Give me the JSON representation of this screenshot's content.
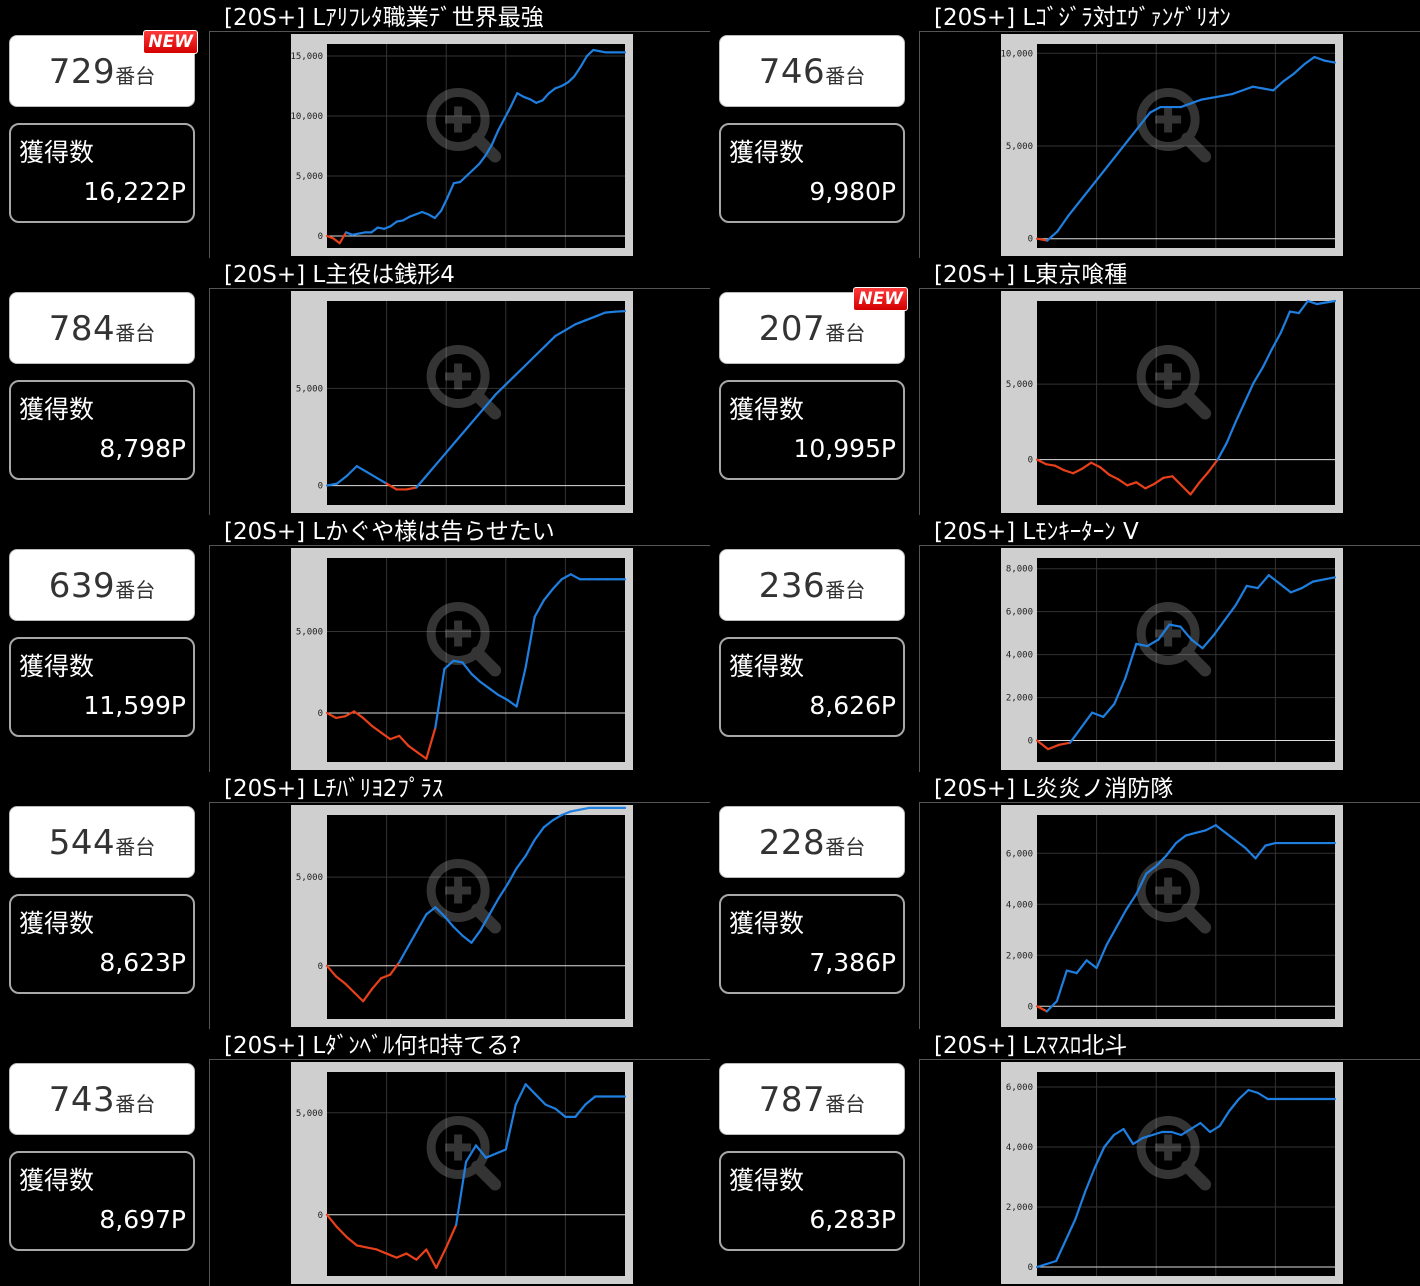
{
  "units": [
    {
      "slot_number": "729",
      "slot_suffix": "番台",
      "is_new": true,
      "new_label": "NEW",
      "gain_label": "獲得数",
      "gain_value": "16,222P",
      "machine_title": "[20S+] Lｱﾘﾌﾚﾀ職業ﾃﾞ世界最強"
    },
    {
      "slot_number": "746",
      "slot_suffix": "番台",
      "is_new": false,
      "new_label": "",
      "gain_label": "獲得数",
      "gain_value": "9,980P",
      "machine_title": "[20S+] Lｺﾞｼﾞﾗ対ｴｳﾞｧﾝｹﾞﾘｵﾝ"
    },
    {
      "slot_number": "784",
      "slot_suffix": "番台",
      "is_new": false,
      "new_label": "",
      "gain_label": "獲得数",
      "gain_value": "8,798P",
      "machine_title": "[20S+] L主役は銭形4"
    },
    {
      "slot_number": "207",
      "slot_suffix": "番台",
      "is_new": true,
      "new_label": "NEW",
      "gain_label": "獲得数",
      "gain_value": "10,995P",
      "machine_title": "[20S+] L東京喰種"
    },
    {
      "slot_number": "639",
      "slot_suffix": "番台",
      "is_new": false,
      "new_label": "",
      "gain_label": "獲得数",
      "gain_value": "11,599P",
      "machine_title": "[20S+] Lかぐや様は告らせたい"
    },
    {
      "slot_number": "236",
      "slot_suffix": "番台",
      "is_new": false,
      "new_label": "",
      "gain_label": "獲得数",
      "gain_value": "8,626P",
      "machine_title": "[20S+] Lﾓﾝｷｰﾀｰﾝ V"
    },
    {
      "slot_number": "544",
      "slot_suffix": "番台",
      "is_new": false,
      "new_label": "",
      "gain_label": "獲得数",
      "gain_value": "8,623P",
      "machine_title": "[20S+] Lﾁﾊﾞﾘﾖ2ﾌﾟﾗｽ"
    },
    {
      "slot_number": "228",
      "slot_suffix": "番台",
      "is_new": false,
      "new_label": "",
      "gain_label": "獲得数",
      "gain_value": "7,386P",
      "machine_title": "[20S+] L炎炎ノ消防隊"
    },
    {
      "slot_number": "743",
      "slot_suffix": "番台",
      "is_new": false,
      "new_label": "",
      "gain_label": "獲得数",
      "gain_value": "8,697P",
      "machine_title": "[20S+] Lﾀﾞﾝﾍﾞﾙ何ｷﾛ持てる?"
    },
    {
      "slot_number": "787",
      "slot_suffix": "番台",
      "is_new": false,
      "new_label": "",
      "gain_label": "獲得数",
      "gain_value": "6,283P",
      "machine_title": "[20S+] Lｽﾏｽﾛ北斗"
    }
  ],
  "colors": {
    "positive_line": "#1e7fe0",
    "negative_line": "#e8401a",
    "background": "#000000",
    "frame": "#cfcfcf"
  },
  "icons": {
    "zoom_overlay": "zoom-in-icon"
  },
  "chart_data": [
    {
      "type": "line",
      "ylim": [
        -1000,
        16000
      ],
      "yticks": [
        0,
        5000,
        10000,
        15000
      ],
      "ytick_labels": [
        "0",
        "5,000",
        "10,000",
        "15,000"
      ],
      "grid": true,
      "x": [
        0,
        1,
        2,
        3,
        4,
        5,
        6,
        7,
        8,
        9,
        10,
        11,
        12,
        13,
        14,
        15,
        16,
        17,
        18,
        19,
        20,
        21,
        22,
        23,
        24,
        25,
        26,
        27,
        28,
        29,
        30,
        31,
        32,
        33,
        34,
        35,
        36,
        37,
        38,
        39,
        40,
        41,
        42,
        43,
        44,
        45,
        46,
        47
      ],
      "values": [
        0,
        -200,
        -600,
        300,
        100,
        200,
        300,
        300,
        700,
        600,
        800,
        1200,
        1300,
        1600,
        1800,
        2000,
        1800,
        1500,
        2100,
        3200,
        4400,
        4500,
        5000,
        5500,
        6000,
        6700,
        7600,
        8800,
        9800,
        10800,
        11900,
        11600,
        11400,
        11100,
        11300,
        11900,
        12300,
        12500,
        12800,
        13300,
        14100,
        15000,
        15500,
        15400,
        15300,
        15300,
        15300,
        15300
      ]
    },
    {
      "type": "line",
      "ylim": [
        -500,
        10500
      ],
      "yticks": [
        0,
        5000,
        10000
      ],
      "ytick_labels": [
        "0",
        "5,000",
        "10,000"
      ],
      "grid": true,
      "x": [
        0,
        1,
        2,
        3,
        4,
        5,
        6,
        7,
        8,
        9,
        10,
        11,
        12,
        13,
        14,
        15,
        16,
        17,
        18,
        19,
        20,
        21,
        22,
        23,
        24,
        25,
        26,
        27,
        28,
        29
      ],
      "values": [
        0,
        -100,
        400,
        1200,
        1900,
        2600,
        3300,
        4000,
        4700,
        5400,
        6100,
        6800,
        7100,
        7100,
        7100,
        7300,
        7500,
        7600,
        7700,
        7800,
        8000,
        8200,
        8100,
        8000,
        8500,
        8900,
        9400,
        9800,
        9600,
        9500
      ]
    },
    {
      "type": "line",
      "ylim": [
        -1000,
        9500
      ],
      "yticks": [
        0,
        5000
      ],
      "ytick_labels": [
        "0",
        "5,000"
      ],
      "grid": true,
      "x": [
        0,
        1,
        2,
        3,
        4,
        5,
        6,
        7,
        8,
        9,
        10,
        11,
        12,
        13,
        14,
        15,
        16,
        17,
        18,
        19,
        20,
        21,
        22,
        23,
        24,
        25,
        26,
        27,
        28,
        29,
        30
      ],
      "values": [
        0,
        100,
        500,
        1000,
        700,
        400,
        100,
        -200,
        -200,
        -100,
        500,
        1100,
        1700,
        2300,
        2900,
        3500,
        4100,
        4700,
        5200,
        5700,
        6200,
        6700,
        7200,
        7700,
        8000,
        8300,
        8500,
        8700,
        8900,
        8950,
        8980
      ]
    },
    {
      "type": "line",
      "ylim": [
        -3000,
        10500
      ],
      "yticks": [
        0,
        5000
      ],
      "ytick_labels": [
        "0",
        "5,000"
      ],
      "grid": true,
      "x": [
        0,
        1,
        2,
        3,
        4,
        5,
        6,
        7,
        8,
        9,
        10,
        11,
        12,
        13,
        14,
        15,
        16,
        17,
        18,
        19,
        20,
        21,
        22,
        23,
        24,
        25,
        26,
        27,
        28,
        29,
        30,
        31,
        32,
        33
      ],
      "values": [
        0,
        -300,
        -400,
        -700,
        -900,
        -600,
        -200,
        -500,
        -1000,
        -1300,
        -1700,
        -1500,
        -1900,
        -1600,
        -1200,
        -1100,
        -1700,
        -2300,
        -1500,
        -800,
        0,
        1100,
        2500,
        3800,
        5100,
        6100,
        7300,
        8400,
        9800,
        9700,
        10500,
        10300,
        10400,
        10500
      ]
    },
    {
      "type": "line",
      "ylim": [
        -3000,
        9500
      ],
      "yticks": [
        0,
        5000
      ],
      "ytick_labels": [
        "0",
        "5,000"
      ],
      "grid": true,
      "x": [
        0,
        1,
        2,
        3,
        4,
        5,
        6,
        7,
        8,
        9,
        10,
        11,
        12,
        13,
        14,
        15,
        16,
        17,
        18,
        19,
        20,
        21,
        22,
        23,
        24,
        25,
        26,
        27,
        28,
        29,
        30,
        31,
        32,
        33
      ],
      "values": [
        0,
        -300,
        -200,
        100,
        -300,
        -800,
        -1200,
        -1600,
        -1400,
        -2000,
        -2400,
        -2800,
        -900,
        2700,
        3200,
        3100,
        2400,
        1900,
        1500,
        1100,
        800,
        400,
        2800,
        5900,
        6900,
        7600,
        8200,
        8500,
        8200,
        8200,
        8200,
        8200,
        8200,
        8200
      ]
    },
    {
      "type": "line",
      "ylim": [
        -1000,
        8500
      ],
      "yticks": [
        0,
        2000,
        4000,
        6000,
        8000
      ],
      "ytick_labels": [
        "0",
        "2,000",
        "4,000",
        "6,000",
        "8,000"
      ],
      "grid": true,
      "x": [
        0,
        1,
        2,
        3,
        4,
        5,
        6,
        7,
        8,
        9,
        10,
        11,
        12,
        13,
        14,
        15,
        16,
        17,
        18,
        19,
        20,
        21,
        22,
        23,
        24,
        25,
        26,
        27
      ],
      "values": [
        0,
        -400,
        -200,
        -100,
        600,
        1300,
        1100,
        1700,
        2900,
        4500,
        4400,
        4700,
        5400,
        5300,
        4700,
        4300,
        4900,
        5600,
        6300,
        7200,
        7100,
        7700,
        7300,
        6900,
        7100,
        7400,
        7500,
        7600
      ]
    },
    {
      "type": "line",
      "ylim": [
        -3000,
        8500
      ],
      "yticks": [
        0,
        5000
      ],
      "ytick_labels": [
        "0",
        "5,000"
      ],
      "grid": true,
      "x": [
        0,
        1,
        2,
        3,
        4,
        5,
        6,
        7,
        8,
        9,
        10,
        11,
        12,
        13,
        14,
        15,
        16,
        17,
        18,
        19,
        20,
        21,
        22,
        23,
        24,
        25,
        26,
        27,
        28,
        29,
        30,
        31,
        32,
        33
      ],
      "values": [
        0,
        -600,
        -1000,
        -1500,
        -2000,
        -1300,
        -700,
        -500,
        200,
        1100,
        2000,
        2900,
        3300,
        2800,
        2200,
        1700,
        1300,
        2000,
        2900,
        3800,
        4600,
        5500,
        6200,
        7100,
        7800,
        8200,
        8500,
        8700,
        8800,
        8900,
        8900,
        8900,
        8900,
        8900
      ]
    },
    {
      "type": "line",
      "ylim": [
        -500,
        7500
      ],
      "yticks": [
        0,
        2000,
        4000,
        6000
      ],
      "ytick_labels": [
        "0",
        "2,000",
        "4,000",
        "6,000"
      ],
      "grid": true,
      "x": [
        0,
        1,
        2,
        3,
        4,
        5,
        6,
        7,
        8,
        9,
        10,
        11,
        12,
        13,
        14,
        15,
        16,
        17,
        18,
        19,
        20,
        21,
        22,
        23,
        24,
        25,
        26,
        27,
        28,
        29,
        30
      ],
      "values": [
        0,
        -200,
        200,
        1400,
        1300,
        1800,
        1500,
        2400,
        3100,
        3800,
        4400,
        5200,
        5500,
        5900,
        6400,
        6700,
        6800,
        6900,
        7100,
        6800,
        6500,
        6200,
        5800,
        6300,
        6400,
        6400,
        6400,
        6400,
        6400,
        6400,
        6400
      ]
    },
    {
      "type": "line",
      "ylim": [
        -3000,
        7000
      ],
      "yticks": [
        0,
        5000
      ],
      "ytick_labels": [
        "0",
        "5,000"
      ],
      "grid": true,
      "x": [
        0,
        1,
        2,
        3,
        4,
        5,
        6,
        7,
        8,
        9,
        10,
        11,
        12,
        13,
        14,
        15,
        16,
        17,
        18,
        19,
        20,
        21,
        22,
        23,
        24,
        25,
        26,
        27,
        28,
        29,
        30
      ],
      "values": [
        0,
        -600,
        -1100,
        -1500,
        -1600,
        -1700,
        -1900,
        -2100,
        -1900,
        -2200,
        -1700,
        -2600,
        -1600,
        -500,
        2600,
        3400,
        2800,
        3000,
        3200,
        5400,
        6400,
        5900,
        5400,
        5200,
        4800,
        4800,
        5400,
        5800,
        5800,
        5800,
        5800
      ]
    },
    {
      "type": "line",
      "ylim": [
        -300,
        6500
      ],
      "yticks": [
        0,
        2000,
        4000,
        6000
      ],
      "ytick_labels": [
        "0",
        "2,000",
        "4,000",
        "6,000"
      ],
      "grid": true,
      "x": [
        0,
        1,
        2,
        3,
        4,
        5,
        6,
        7,
        8,
        9,
        10,
        11,
        12,
        13,
        14,
        15,
        16,
        17,
        18,
        19,
        20,
        21,
        22,
        23,
        24,
        25,
        26,
        27,
        28,
        29,
        30,
        31
      ],
      "values": [
        0,
        100,
        200,
        900,
        1600,
        2500,
        3300,
        4000,
        4400,
        4600,
        4100,
        4300,
        4400,
        4500,
        4500,
        4400,
        4600,
        4800,
        4500,
        4700,
        5200,
        5600,
        5900,
        5800,
        5600,
        5600,
        5600,
        5600,
        5600,
        5600,
        5600,
        5600
      ]
    }
  ]
}
